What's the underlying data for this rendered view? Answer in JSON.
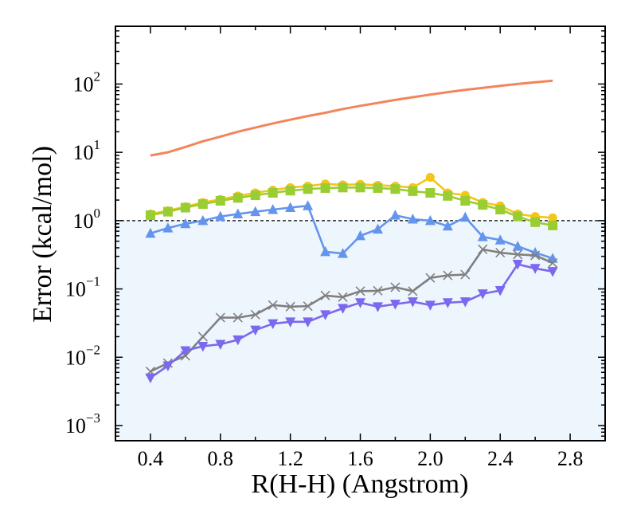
{
  "chart_data": {
    "type": "line",
    "title": "",
    "xlabel": "R(H-H) (Angstrom)",
    "ylabel": "Error (kcal/mol)",
    "xscale": "linear",
    "yscale": "log",
    "xlim": [
      0.2,
      3.0
    ],
    "ylim": [
      0.0006,
      700
    ],
    "xticks": [
      0.4,
      0.8,
      1.2,
      1.6,
      2.0,
      2.4,
      2.8
    ],
    "xtick_labels": [
      "0.4",
      "0.8",
      "1.2",
      "1.6",
      "2.0",
      "2.4",
      "2.8"
    ],
    "yticks": [
      {
        "value": 0.001,
        "base": "10",
        "exp": "−3"
      },
      {
        "value": 0.01,
        "base": "10",
        "exp": "−2"
      },
      {
        "value": 0.1,
        "base": "10",
        "exp": "−1"
      },
      {
        "value": 1,
        "base": "10",
        "exp": "0"
      },
      {
        "value": 10,
        "base": "10",
        "exp": "1"
      },
      {
        "value": 100,
        "base": "10",
        "exp": "2"
      }
    ],
    "threshold": {
      "value": 1.0,
      "style": "dashed",
      "color": "#000000",
      "shade_below": "#eef6fd"
    },
    "x": [
      0.4,
      0.5,
      0.6,
      0.7,
      0.8,
      0.9,
      1.0,
      1.1,
      1.2,
      1.3,
      1.4,
      1.5,
      1.6,
      1.7,
      1.8,
      1.9,
      2.0,
      2.1,
      2.2,
      2.3,
      2.4,
      2.5,
      2.6,
      2.7
    ],
    "series": [
      {
        "name": "orange",
        "color": "#f4845a",
        "marker": "none",
        "values": [
          9.0,
          10.0,
          12.0,
          14.5,
          17.0,
          20.0,
          23.0,
          26.5,
          30.0,
          34.0,
          38.0,
          43.0,
          48.0,
          53.0,
          58.5,
          64.0,
          70.0,
          76.0,
          82.0,
          88.0,
          94.0,
          100.0,
          106.0,
          112.0
        ]
      },
      {
        "name": "yellow",
        "color": "#f5c518",
        "marker": "circle",
        "values": [
          1.25,
          1.4,
          1.6,
          1.85,
          2.05,
          2.3,
          2.55,
          2.8,
          3.05,
          3.2,
          3.45,
          3.35,
          3.4,
          3.3,
          3.2,
          3.05,
          4.3,
          2.55,
          2.35,
          1.85,
          1.65,
          1.25,
          1.15,
          1.1
        ]
      },
      {
        "name": "green",
        "color": "#9acd32",
        "marker": "square",
        "values": [
          1.2,
          1.35,
          1.55,
          1.75,
          1.95,
          2.15,
          2.35,
          2.55,
          2.75,
          2.9,
          3.0,
          3.05,
          3.05,
          3.0,
          2.9,
          2.7,
          2.55,
          2.3,
          1.95,
          1.7,
          1.45,
          1.15,
          0.95,
          0.85
        ]
      },
      {
        "name": "blue",
        "color": "#6495ed",
        "marker": "triangle-up",
        "values": [
          0.65,
          0.78,
          0.9,
          1.0,
          1.15,
          1.25,
          1.35,
          1.45,
          1.55,
          1.65,
          0.35,
          0.33,
          0.6,
          0.75,
          1.2,
          1.05,
          1.0,
          0.83,
          1.12,
          0.58,
          0.52,
          0.42,
          0.34,
          0.28
        ]
      },
      {
        "name": "gray",
        "color": "#808080",
        "marker": "x",
        "values": [
          0.0062,
          0.0082,
          0.0105,
          0.02,
          0.038,
          0.038,
          0.042,
          0.058,
          0.055,
          0.056,
          0.08,
          0.076,
          0.093,
          0.094,
          0.106,
          0.093,
          0.145,
          0.158,
          0.162,
          0.38,
          0.34,
          0.32,
          0.31,
          0.24
        ]
      },
      {
        "name": "purple",
        "color": "#7b68ee",
        "marker": "triangle-down",
        "values": [
          0.005,
          0.0075,
          0.0125,
          0.0145,
          0.0155,
          0.018,
          0.025,
          0.031,
          0.033,
          0.033,
          0.042,
          0.052,
          0.063,
          0.055,
          0.06,
          0.065,
          0.058,
          0.063,
          0.065,
          0.085,
          0.095,
          0.23,
          0.2,
          0.18
        ]
      }
    ]
  }
}
